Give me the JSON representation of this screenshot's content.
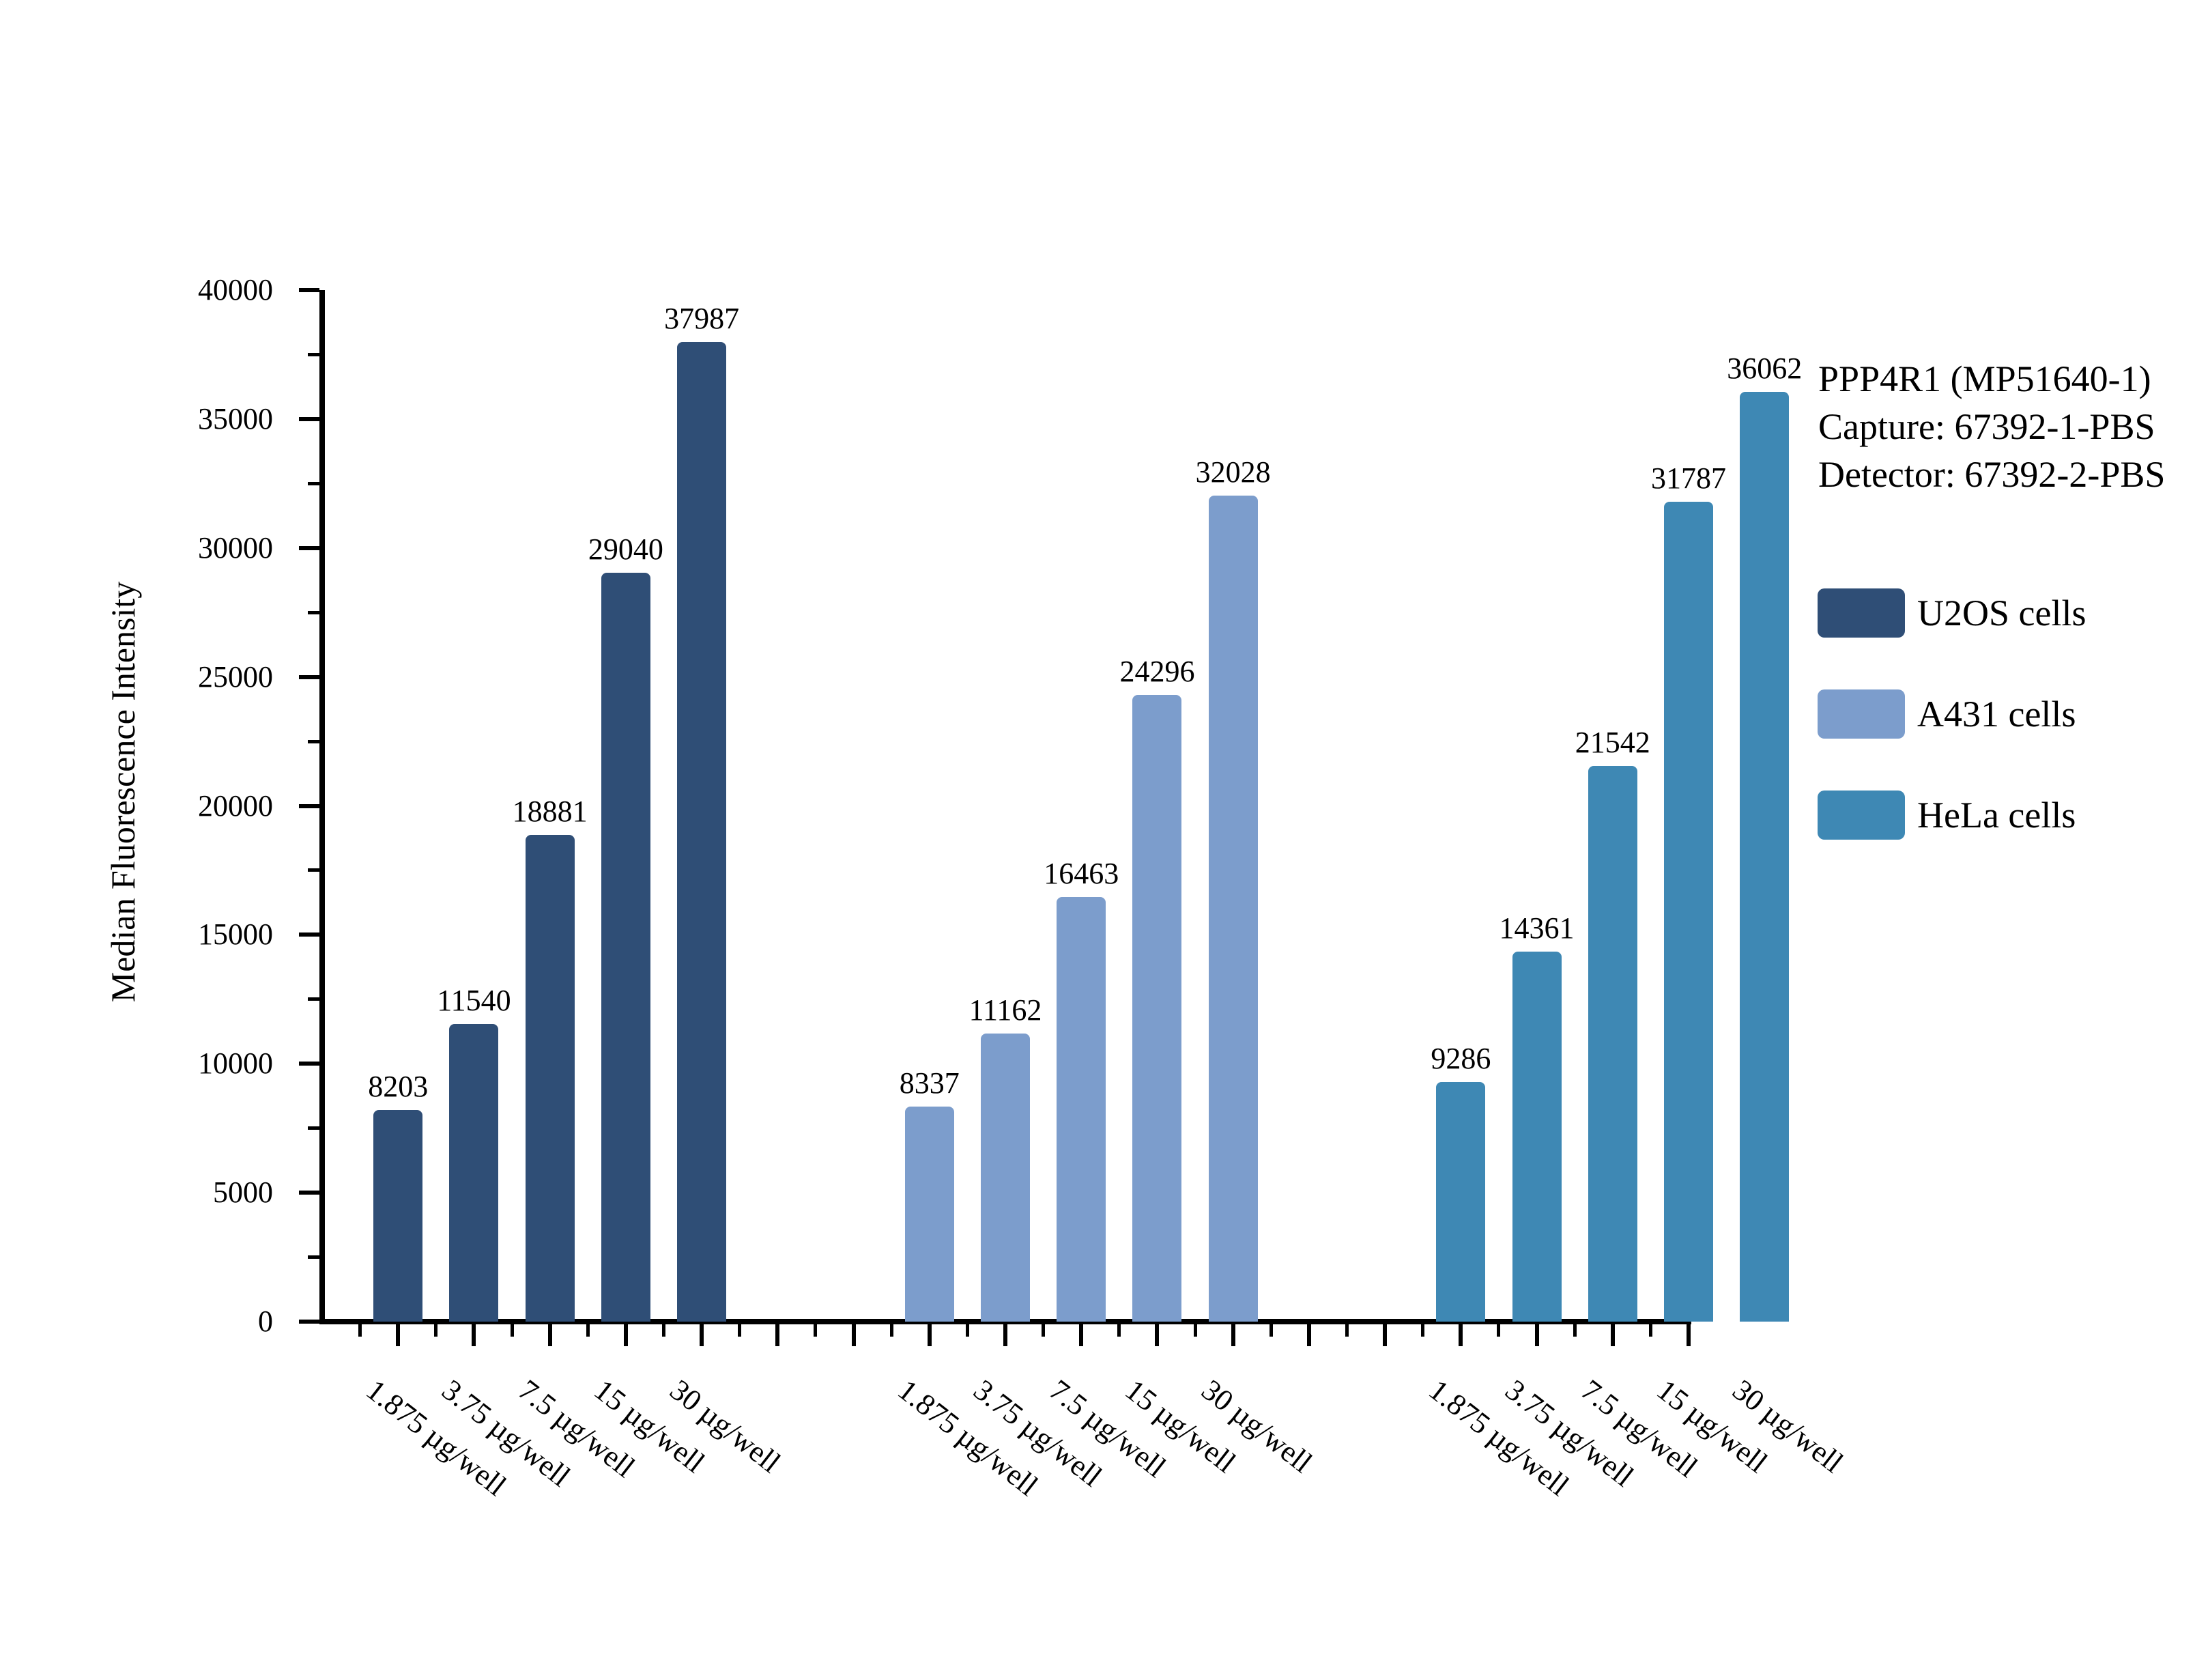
{
  "chart_data": {
    "type": "bar",
    "title": "",
    "xlabel": "",
    "ylabel": "Median Fluorescence Intensity",
    "ylim": [
      0,
      40000
    ],
    "ytick_step": 5000,
    "ytick_minor_step": 2500,
    "grid": false,
    "legend_position": "right",
    "value_labels_shown": true,
    "categories": [
      "1.875 µg/well",
      "3.75 µg/well",
      "7.5 µg/well",
      "15 µg/well",
      "30 µg/well"
    ],
    "series": [
      {
        "name": "U2OS cells",
        "color": "#2F4E76",
        "values": [
          8203,
          11540,
          18881,
          29040,
          37987
        ]
      },
      {
        "name": "A431 cells",
        "color": "#7C9DCC",
        "values": [
          8337,
          11162,
          16463,
          24296,
          32028
        ]
      },
      {
        "name": "HeLa cells",
        "color": "#3E88B4",
        "values": [
          9286,
          14361,
          21542,
          31787,
          36062
        ]
      }
    ]
  },
  "annotation": {
    "lines": [
      "PPP4R1 (MP51640-1)",
      "Capture: 67392-1-PBS",
      "Detector: 67392-2-PBS"
    ]
  },
  "colors": {
    "axis": "#000000",
    "text": "#000000",
    "background": "#ffffff"
  }
}
